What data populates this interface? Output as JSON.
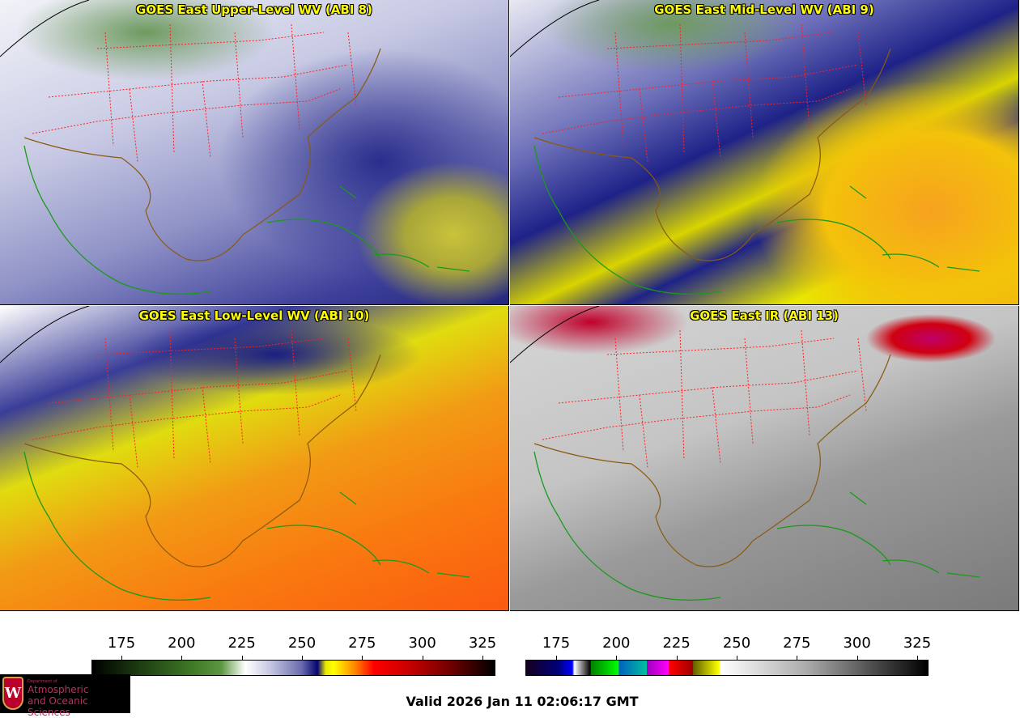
{
  "panels": [
    {
      "title": "GOES East Upper-Level WV (ABI 8)"
    },
    {
      "title": "GOES East Mid-Level WV (ABI 9)"
    },
    {
      "title": "GOES East Low-Level WV (ABI 10)"
    },
    {
      "title": "GOES East IR (ABI 13)"
    }
  ],
  "colorbars": [
    {
      "name": "water-vapor",
      "ticks": [
        "175",
        "200",
        "225",
        "250",
        "275",
        "300",
        "325"
      ]
    },
    {
      "name": "infrared",
      "ticks": [
        "175",
        "200",
        "225",
        "250",
        "275",
        "300",
        "325"
      ]
    }
  ],
  "logo": {
    "line1": "Department of",
    "line2": "Atmospheric",
    "line3": "and Oceanic Sciences",
    "crest": "W"
  },
  "valid_time": "Valid 2026 Jan 11 02:06:17 GMT",
  "colors": {
    "title": "#ffff00",
    "state_borders": "#ff2020",
    "coastline": "#1a9a1a",
    "country_borders": "#8a5a10"
  }
}
